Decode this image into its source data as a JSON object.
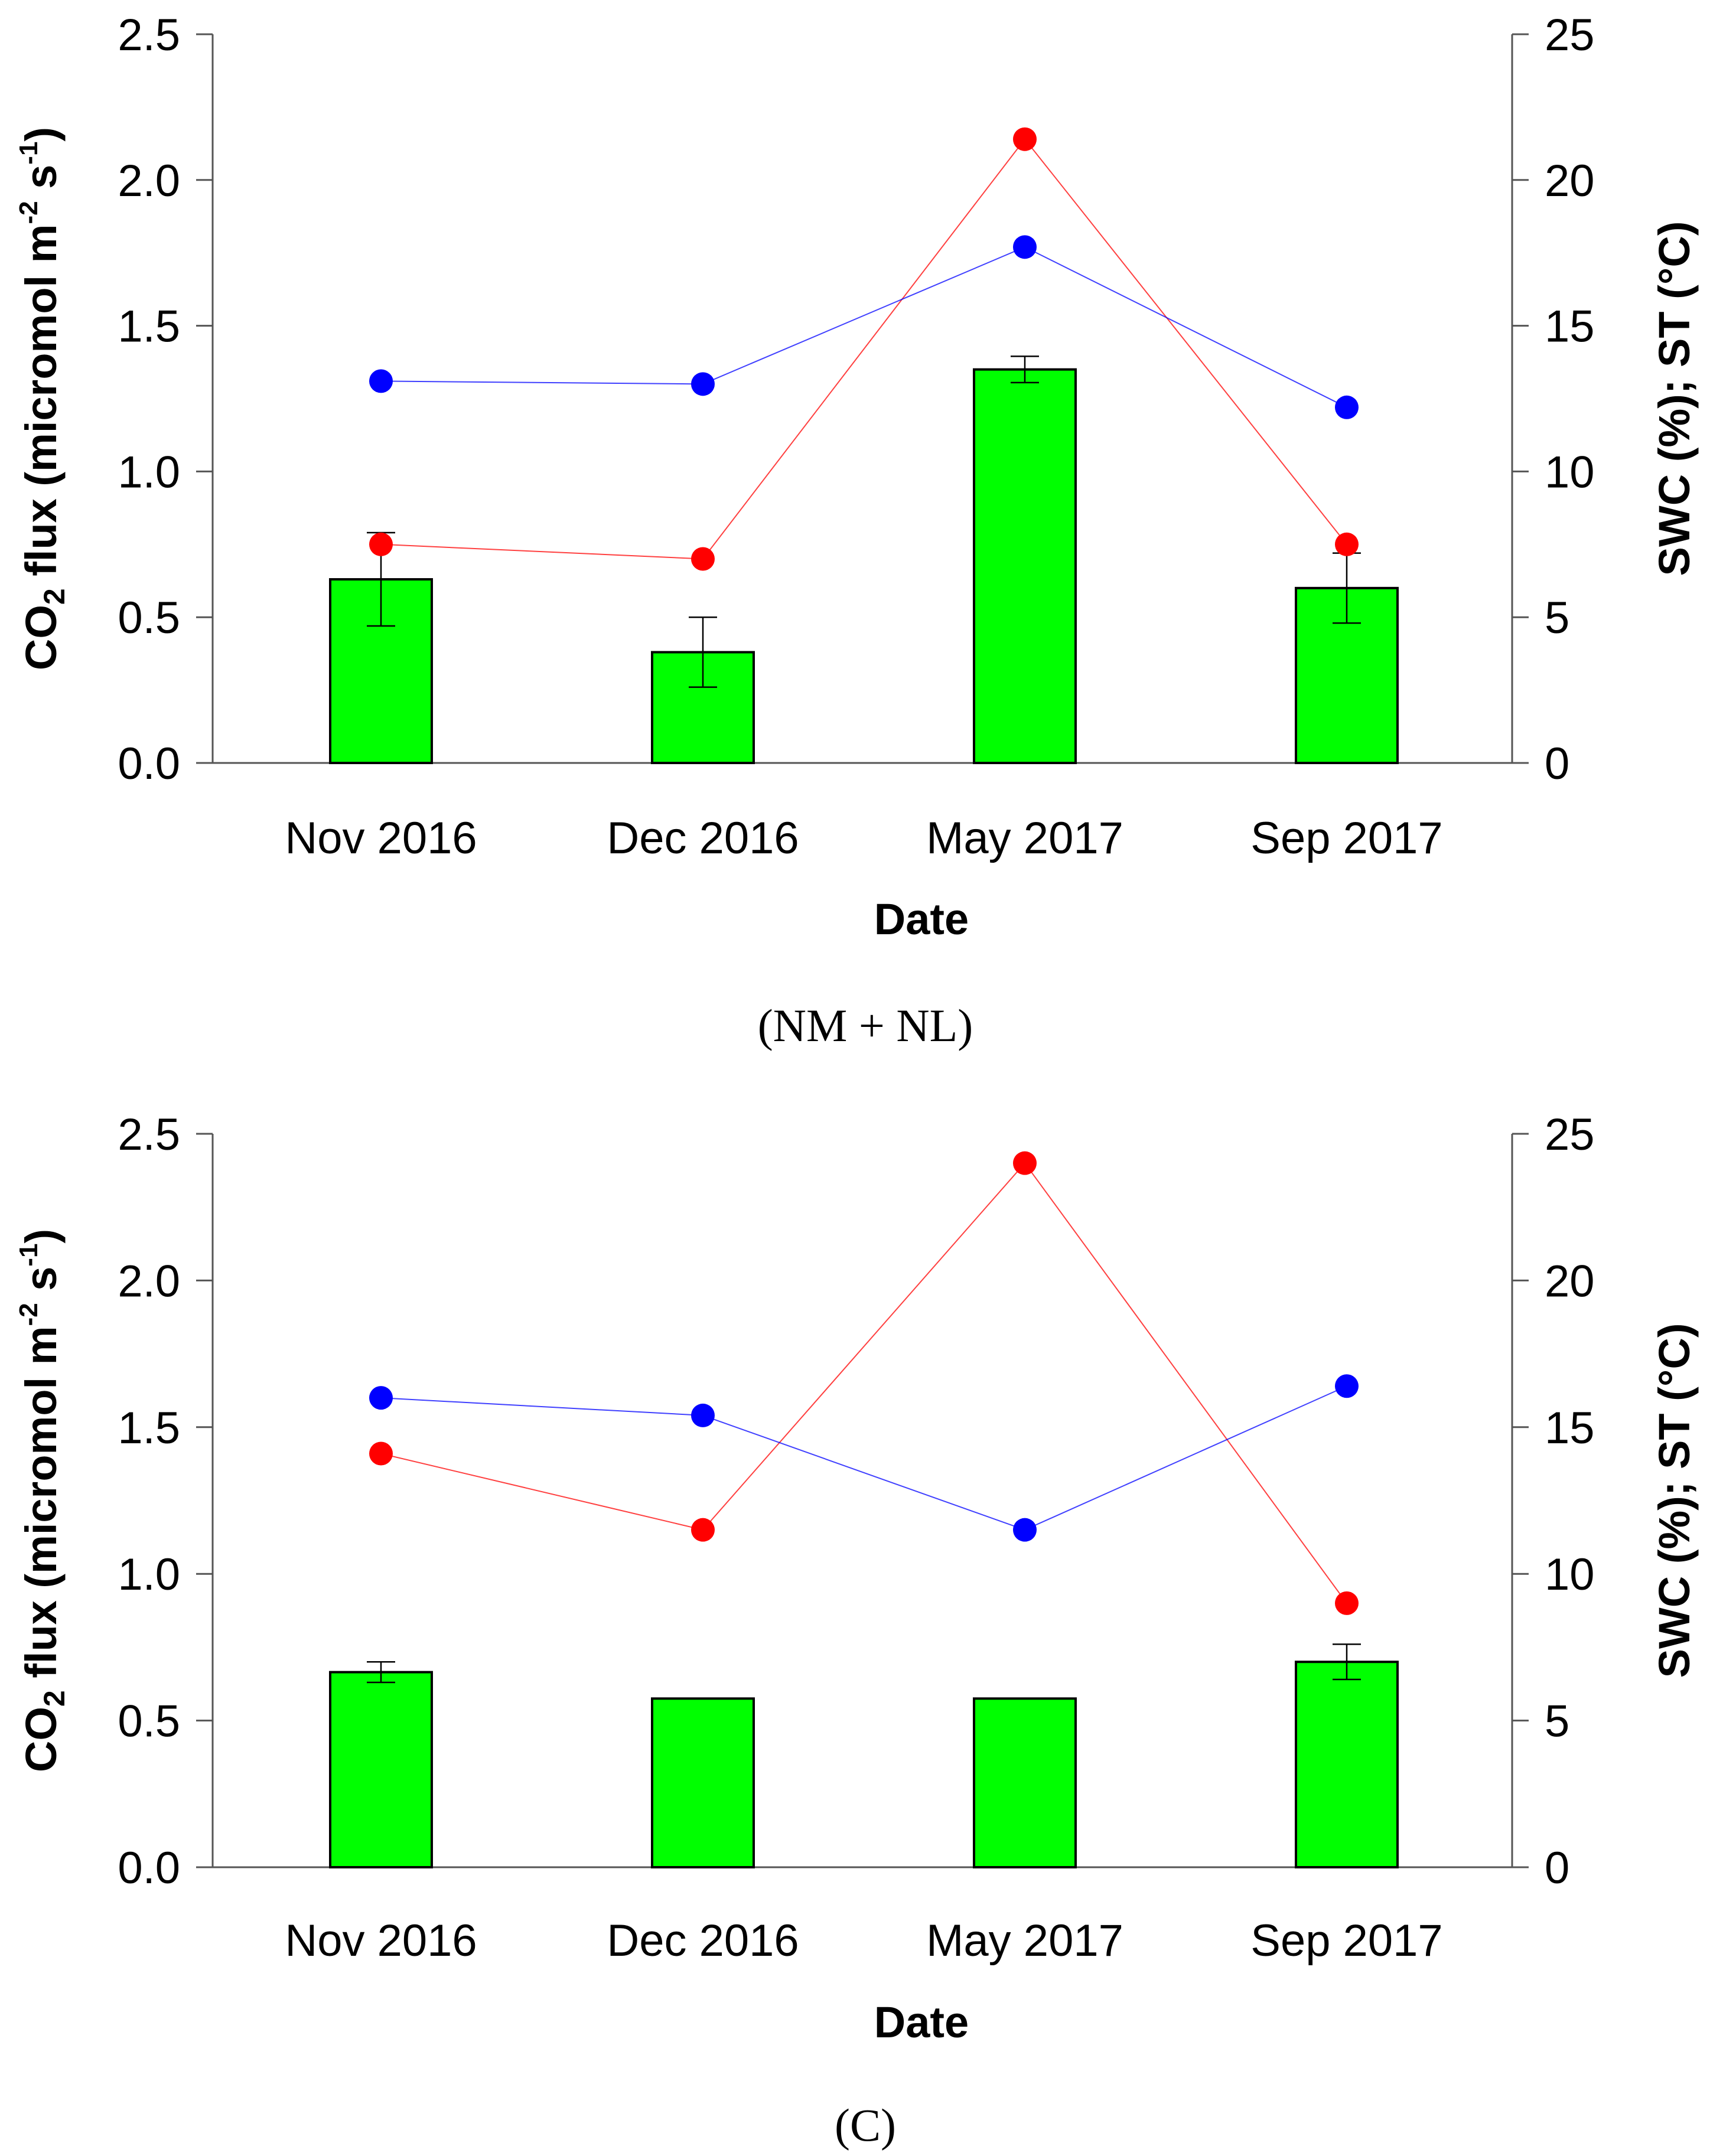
{
  "chart_data": [
    {
      "type": "bar+line",
      "caption": "(NM + NL)",
      "categories": [
        "Nov 2016",
        "Dec 2016",
        "May 2017",
        "Sep 2017"
      ],
      "xlabel": "Date",
      "ylabel": {
        "prefix": "CO",
        "sub": "2",
        "mid": " flux (micromol m",
        "sup1": "-2",
        "mid2": " s",
        "sup2": "-1",
        "suffix": ")"
      },
      "y2label": "SWC (%); ST (°C)",
      "ylim": [
        0,
        2.5
      ],
      "y2lim": [
        0,
        25
      ],
      "yticks": [
        "0.0",
        "0.5",
        "1.0",
        "1.5",
        "2.0",
        "2.5"
      ],
      "y2ticks": [
        "0",
        "5",
        "10",
        "15",
        "20",
        "25"
      ],
      "bars": {
        "name": "CO2 flux",
        "values": [
          0.63,
          0.38,
          1.35,
          0.6
        ],
        "errors": [
          0.16,
          0.12,
          0.045,
          0.12
        ],
        "color": "#00ff00"
      },
      "lines": [
        {
          "name": "SWC",
          "axis": "right",
          "color": "#ff0000",
          "values": [
            7.5,
            7.0,
            21.4,
            7.5
          ]
        },
        {
          "name": "ST",
          "axis": "right",
          "color": "#0000ff",
          "values": [
            13.1,
            13.0,
            17.7,
            12.2
          ]
        }
      ]
    },
    {
      "type": "bar+line",
      "caption": "(C)",
      "categories": [
        "Nov 2016",
        "Dec 2016",
        "May 2017",
        "Sep 2017"
      ],
      "xlabel": "Date",
      "ylabel": {
        "prefix": "CO",
        "sub": "2",
        "mid": " flux (micromol m",
        "sup1": "-2",
        "mid2": " s",
        "sup2": "-1",
        "suffix": ")"
      },
      "y2label": "SWC (%); ST (°C)",
      "ylim": [
        0,
        2.5
      ],
      "y2lim": [
        0,
        25
      ],
      "yticks": [
        "0.0",
        "0.5",
        "1.0",
        "1.5",
        "2.0",
        "2.5"
      ],
      "y2ticks": [
        "0",
        "5",
        "10",
        "15",
        "20",
        "25"
      ],
      "bars": {
        "name": "CO2 flux",
        "values": [
          0.665,
          0.575,
          0.575,
          0.7
        ],
        "errors": [
          0.035,
          0,
          0,
          0.06
        ],
        "color": "#00ff00"
      },
      "lines": [
        {
          "name": "SWC",
          "axis": "right",
          "color": "#ff0000",
          "values": [
            14.1,
            11.5,
            24.0,
            9.0
          ]
        },
        {
          "name": "ST",
          "axis": "right",
          "color": "#0000ff",
          "values": [
            16.0,
            15.4,
            11.5,
            16.4
          ]
        }
      ]
    }
  ]
}
